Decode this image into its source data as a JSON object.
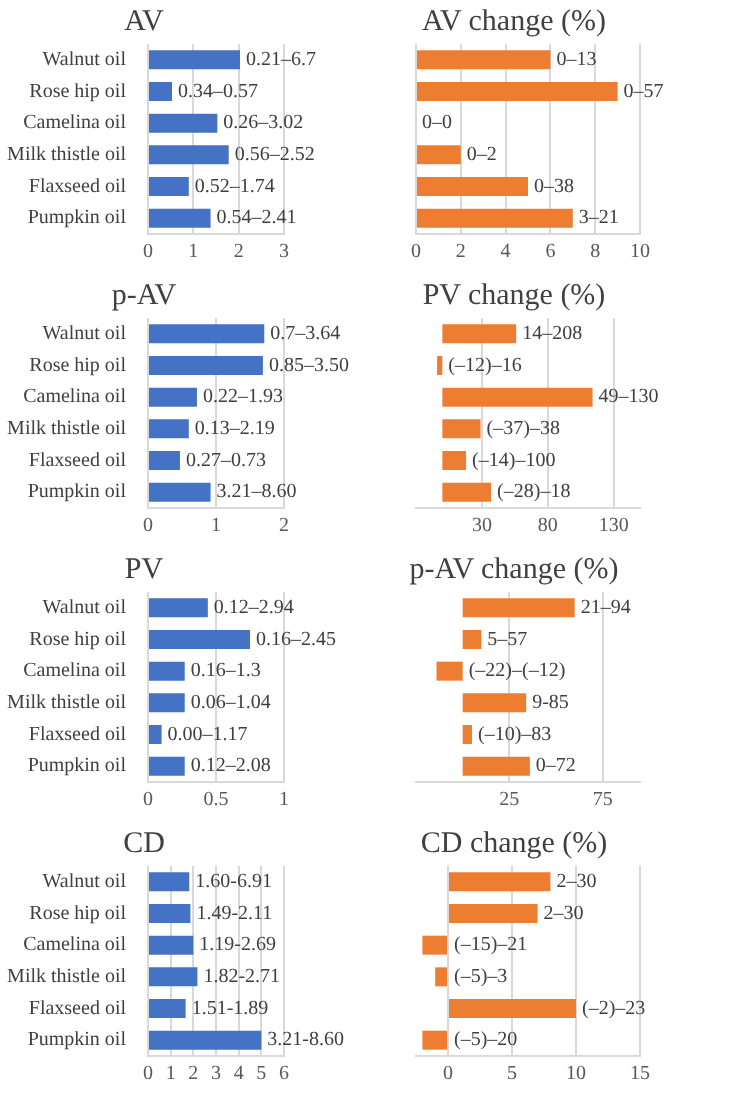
{
  "chart_data": [
    {
      "type": "bar",
      "orientation": "horizontal",
      "title": "AV",
      "categories": [
        "Walnut oil",
        "Rose hip oil",
        "Camelina oil",
        "Milk thistle oil",
        "Flaxseed oil",
        "Pumpkin oil"
      ],
      "values": [
        2.03,
        0.53,
        1.53,
        1.78,
        0.9,
        1.38
      ],
      "value_labels": [
        "0.21–6.7",
        "0.34–0.57",
        "0.26–3.02",
        "0.56–2.52",
        "0.52–1.74",
        "0.54–2.41"
      ],
      "color": "#4472c4",
      "xlim": [
        0,
        3
      ],
      "xticks": [
        0,
        1,
        2,
        3
      ],
      "grid": "x"
    },
    {
      "type": "bar",
      "orientation": "horizontal",
      "title": "AV change (%)",
      "categories": [
        null,
        null,
        null,
        null,
        null,
        null
      ],
      "values": [
        6,
        9,
        0,
        2,
        5,
        7
      ],
      "value_labels": [
        "0–13",
        "0–57",
        "0–0",
        "0–2",
        "0–38",
        "3–21"
      ],
      "color": "#ed7d31",
      "xlim": [
        0,
        10
      ],
      "xticks": [
        0,
        2,
        4,
        6,
        8,
        10
      ],
      "grid": "x"
    },
    {
      "type": "bar",
      "orientation": "horizontal",
      "title": "p-AV",
      "categories": [
        "Walnut oil",
        "Rose hip oil",
        "Camelina oil",
        "Milk thistle oil",
        "Flaxseed oil",
        "Pumpkin oil"
      ],
      "values": [
        1.71,
        1.69,
        0.72,
        0.6,
        0.47,
        0.92
      ],
      "value_labels": [
        "0.7–3.64",
        "0.85–3.50",
        "0.22–1.93",
        "0.13–2.19",
        "0.27–0.73",
        "3.21–8.60"
      ],
      "color": "#4472c4",
      "xlim": [
        0,
        2
      ],
      "xticks": [
        0,
        1,
        2
      ],
      "grid": "x"
    },
    {
      "type": "bar",
      "orientation": "horizontal",
      "title": "PV change (%)",
      "categories": [
        null,
        null,
        null,
        null,
        null,
        null
      ],
      "values": [
        56,
        -4,
        114,
        29,
        18,
        37
      ],
      "value_labels": [
        "14–208",
        "(–12)–16",
        "49–130",
        "(–37)–38",
        "(–14)–100",
        "(–28)–18"
      ],
      "color": "#ed7d31",
      "xlim": [
        -20,
        150
      ],
      "xticks": [
        30,
        80,
        130
      ],
      "grid": "x"
    },
    {
      "type": "bar",
      "orientation": "horizontal",
      "title": "PV",
      "categories": [
        "Walnut oil",
        "Rose hip oil",
        "Camelina oil",
        "Milk thistle oil",
        "Flaxseed oil",
        "Pumpkin oil"
      ],
      "values": [
        0.44,
        0.75,
        0.27,
        0.27,
        0.1,
        0.27
      ],
      "value_labels": [
        "0.12–2.94",
        "0.16–2.45",
        "0.16–1.3",
        "0.06–1.04",
        "0.00–1.17",
        "0.12–2.08"
      ],
      "color": "#4472c4",
      "xlim": [
        0,
        1
      ],
      "xticks": [
        0,
        0.5,
        1
      ],
      "grid": "x"
    },
    {
      "type": "bar",
      "orientation": "horizontal",
      "title": "p-AV change (%)",
      "categories": [
        null,
        null,
        null,
        null,
        null,
        null
      ],
      "values": [
        60,
        10,
        -14,
        34,
        5,
        36
      ],
      "value_labels": [
        "21–94",
        "5–57",
        "(–22)–(–12)",
        "9-85",
        "(–10)–83",
        "0–72"
      ],
      "color": "#ed7d31",
      "xlim": [
        -25,
        95
      ],
      "xticks": [
        25,
        75
      ],
      "grid": "x"
    },
    {
      "type": "bar",
      "orientation": "horizontal",
      "title": "CD",
      "categories": [
        "Walnut oil",
        "Rose hip oil",
        "Camelina oil",
        "Milk thistle oil",
        "Flaxseed oil",
        "Pumpkin oil"
      ],
      "values": [
        1.82,
        1.87,
        2.0,
        2.18,
        1.66,
        5.0
      ],
      "value_labels": [
        "1.60-6.91",
        "1.49-2.11",
        "1.19-2.69",
        "1.82-2.71",
        "1.51-1.89",
        "3.21-8.60"
      ],
      "color": "#4472c4",
      "xlim": [
        0,
        6
      ],
      "xticks": [
        0,
        1,
        2,
        3,
        4,
        5,
        6
      ],
      "grid": "x"
    },
    {
      "type": "bar",
      "orientation": "horizontal",
      "title": "CD change (%)",
      "categories": [
        null,
        null,
        null,
        null,
        null,
        null
      ],
      "values": [
        8,
        7,
        -2,
        -1,
        10,
        -2
      ],
      "value_labels": [
        "2–30",
        "2–30",
        "(–15)–21",
        "(–5)–3",
        "(–2)–23",
        "(–5)–20"
      ],
      "color": "#ed7d31",
      "xlim": [
        -2.5,
        15
      ],
      "xticks": [
        0,
        5,
        10,
        15
      ],
      "grid": "x"
    }
  ]
}
